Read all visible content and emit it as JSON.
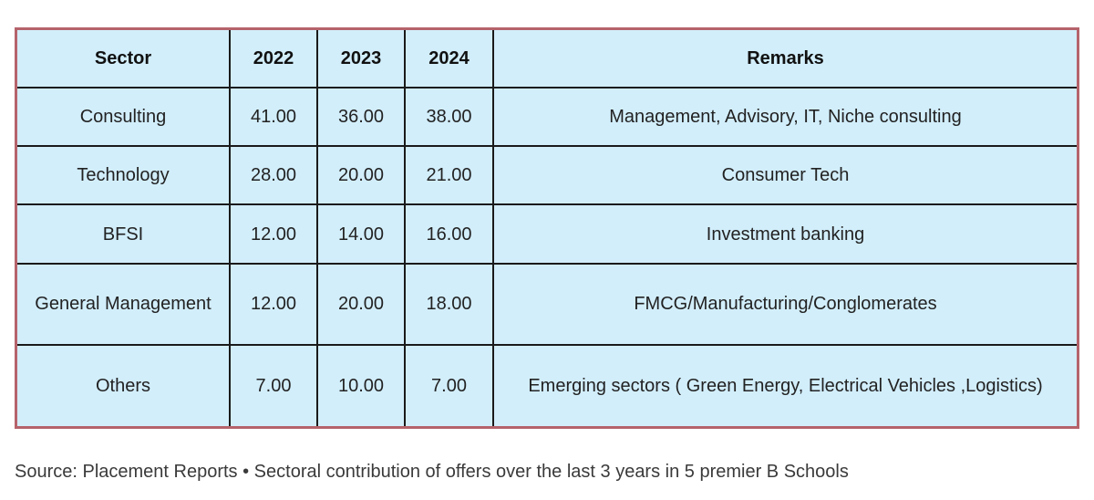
{
  "table": {
    "headers": [
      "Sector",
      "2022",
      "2023",
      "2024",
      "Remarks"
    ],
    "rows": [
      {
        "sector": "Consulting",
        "y2022": "41.00",
        "y2023": "36.00",
        "y2024": "38.00",
        "remarks": "Management, Advisory, IT, Niche consulting"
      },
      {
        "sector": "Technology",
        "y2022": "28.00",
        "y2023": "20.00",
        "y2024": "21.00",
        "remarks": "Consumer Tech"
      },
      {
        "sector": "BFSI",
        "y2022": "12.00",
        "y2023": "14.00",
        "y2024": "16.00",
        "remarks": "Investment banking"
      },
      {
        "sector": "General Management",
        "y2022": "12.00",
        "y2023": "20.00",
        "y2024": "18.00",
        "remarks": "FMCG/Manufacturing/Conglomerates"
      },
      {
        "sector": "Others",
        "y2022": "7.00",
        "y2023": "10.00",
        "y2024": "7.00",
        "remarks": "Emerging sectors ( Green Energy, Electrical Vehicles ,Logistics)"
      }
    ]
  },
  "source": "Source: Placement Reports • Sectoral contribution of offers over the last 3 years in 5 premier B Schools",
  "colors": {
    "cell_background": "#d2eefb",
    "frame_border": "#b5636b",
    "grid_lines": "#1a1a1a"
  }
}
